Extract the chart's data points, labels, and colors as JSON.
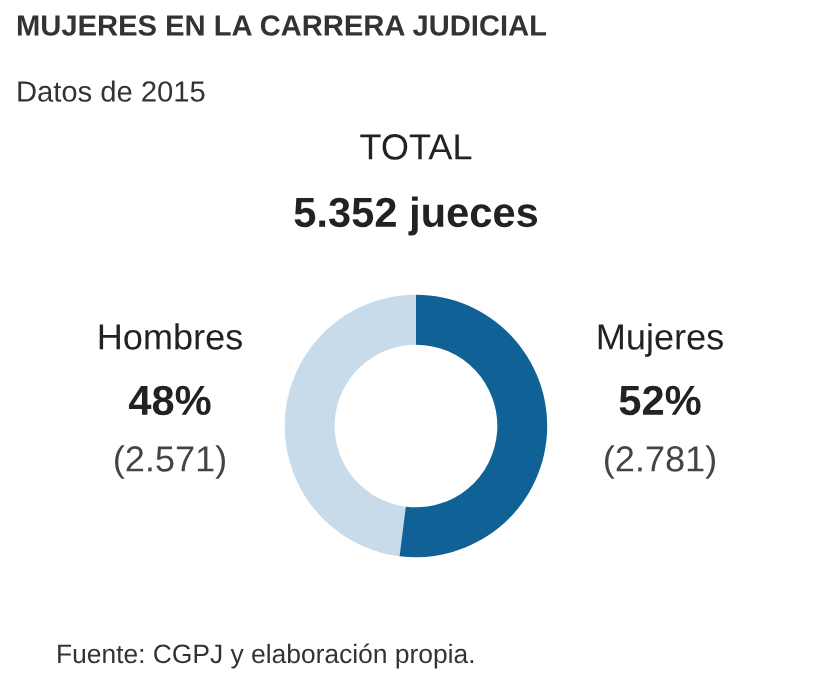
{
  "chart_data": {
    "type": "donut",
    "title": "MUJERES EN LA CARRERA JUDICIAL",
    "subtitle": "Datos de 2015",
    "categories": [
      "Hombres",
      "Mujeres"
    ],
    "values": [
      48,
      52
    ],
    "value_labels": [
      "48%",
      "52%"
    ],
    "colors": [
      "#c8dbea",
      "#0f6196"
    ],
    "annotations": [
      "TOTAL",
      "5.352 jueces",
      "(2.571)",
      "(2.781)",
      "Fuente: CGPJ y elaboración propia."
    ]
  }
}
